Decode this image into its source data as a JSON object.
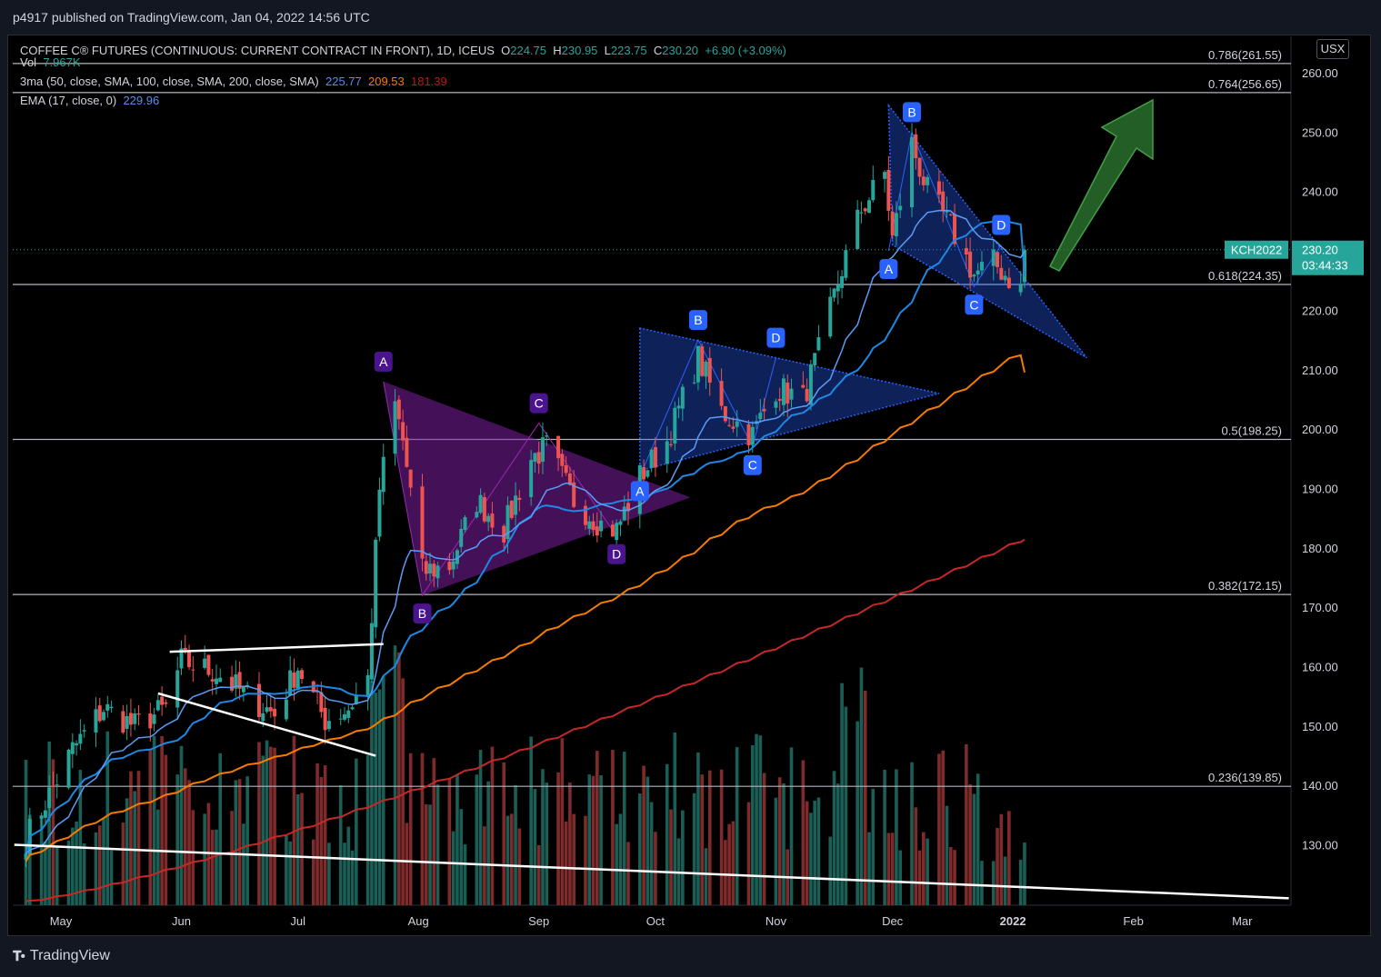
{
  "header": {
    "published": "p4917 published on TradingView.com, Jan 04, 2022 14:56 UTC"
  },
  "legend": {
    "title_row": "COFFEE C® FUTURES (CONTINUOUS: CURRENT CONTRACT IN FRONT), 1D, ICEUS",
    "ohlc": {
      "o_label": "O",
      "o": "224.75",
      "h_label": "H",
      "h": "230.95",
      "l_label": "L",
      "l": "223.75",
      "c_label": "C",
      "c": "230.20",
      "chg": "+6.90 (+3.09%)"
    },
    "vol_label": "Vol",
    "vol_value": "7.967K",
    "ma_label": "3ma (50, close, SMA, 100, close, SMA, 200, close, SMA)",
    "ma_values": [
      "225.77",
      "209.53",
      "181.39"
    ],
    "ema_label": "EMA (17, close, 0)",
    "ema_value": "229.96"
  },
  "currency_button": "USX",
  "price_tag": {
    "symbol": "KCH2022",
    "price": "230.20",
    "countdown": "03:44:33"
  },
  "colors": {
    "up": "#26a69a",
    "down": "#ef5350",
    "ema": "#2196f3",
    "sma50": "#1e88e5",
    "sma100": "#f57c00",
    "sma200": "#c62828",
    "purple": "#7b1fa2",
    "pattern_blue": "#2962ff",
    "arrow": "#43a047"
  },
  "brand": "TradingView",
  "chart_data": {
    "type": "candlestick",
    "y_axis": {
      "min": 120,
      "max": 265,
      "ticks": [
        "260.00",
        "250.00",
        "240.00",
        "230.00",
        "220.00",
        "210.00",
        "200.00",
        "190.00",
        "180.00",
        "170.00",
        "160.00",
        "150.00",
        "140.00",
        "130.00"
      ]
    },
    "x_axis": {
      "ticks": [
        "May",
        "Jun",
        "Jul",
        "Aug",
        "Sep",
        "Oct",
        "Nov",
        "Dec",
        "2022",
        "Feb",
        "Mar"
      ]
    },
    "fib_levels": [
      {
        "ratio": "0.786",
        "price": 261.55,
        "label": "0.786(261.55)"
      },
      {
        "ratio": "0.764",
        "price": 256.65,
        "label": "0.764(256.65)"
      },
      {
        "ratio": "0.618",
        "price": 224.35,
        "label": "0.618(224.35)"
      },
      {
        "ratio": "0.5",
        "price": 198.25,
        "label": "0.5(198.25)"
      },
      {
        "ratio": "0.382",
        "price": 172.15,
        "label": "0.382(172.15)"
      },
      {
        "ratio": "0.236",
        "price": 139.85,
        "label": "0.236(139.85)"
      }
    ],
    "pattern_points": [
      {
        "label": "A",
        "set": "purple",
        "date": "2021-07-23",
        "price": 208
      },
      {
        "label": "B",
        "set": "purple",
        "date": "2021-08-02",
        "price": 172
      },
      {
        "label": "C",
        "set": "purple",
        "date": "2021-09-01",
        "price": 201
      },
      {
        "label": "D",
        "set": "purple",
        "date": "2021-09-21",
        "price": 182
      },
      {
        "label": "A",
        "set": "blue1",
        "date": "2021-09-27",
        "price": 192
      },
      {
        "label": "B",
        "set": "blue1",
        "date": "2021-10-12",
        "price": 215
      },
      {
        "label": "C",
        "set": "blue1",
        "date": "2021-10-26",
        "price": 197
      },
      {
        "label": "D",
        "set": "blue1",
        "date": "2021-11-01",
        "price": 212
      },
      {
        "label": "A",
        "set": "blue2",
        "date": "2021-11-30",
        "price": 230
      },
      {
        "label": "B",
        "set": "blue2",
        "date": "2021-12-06",
        "price": 250
      },
      {
        "label": "C",
        "set": "blue2",
        "date": "2021-12-22",
        "price": 224
      },
      {
        "label": "D",
        "set": "blue2",
        "date": "2021-12-29",
        "price": 231
      }
    ],
    "last": {
      "date": "2022-01-04",
      "open": 224.75,
      "high": 230.95,
      "low": 223.75,
      "close": 230.2,
      "volume": "7.967K"
    },
    "moving_averages": {
      "sma50": 225.77,
      "sma100": 209.53,
      "sma200": 181.39,
      "ema17": 229.96
    }
  }
}
